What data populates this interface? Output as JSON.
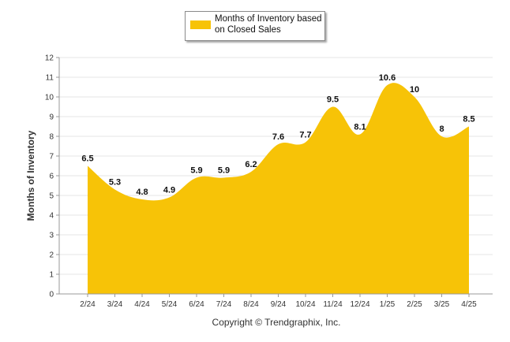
{
  "legend": {
    "label": "Months of Inventory based on Closed Sales"
  },
  "footer": {
    "copyright": "Copyright © Trendgraphix, Inc."
  },
  "colors": {
    "area_fill": "#F7C307",
    "axis": "#999999",
    "gridline": "#E6E6E6",
    "label_text": "#111111"
  },
  "chart_data": {
    "type": "area",
    "title": "",
    "xlabel": "",
    "ylabel": "Months of Inventory",
    "ylim": [
      0,
      12
    ],
    "yticks": [
      0,
      1,
      2,
      3,
      4,
      5,
      6,
      7,
      8,
      9,
      10,
      11,
      12
    ],
    "grid": true,
    "legend_position": "top-center",
    "categories": [
      "2/24",
      "3/24",
      "4/24",
      "5/24",
      "6/24",
      "7/24",
      "8/24",
      "9/24",
      "10/24",
      "11/24",
      "12/24",
      "1/25",
      "2/25",
      "3/25",
      "4/25"
    ],
    "series": [
      {
        "name": "Months of Inventory based on Closed Sales",
        "values": [
          6.5,
          5.3,
          4.8,
          4.9,
          5.9,
          5.9,
          6.2,
          7.6,
          7.7,
          9.5,
          8.1,
          10.6,
          10,
          8,
          8.5
        ]
      }
    ]
  }
}
